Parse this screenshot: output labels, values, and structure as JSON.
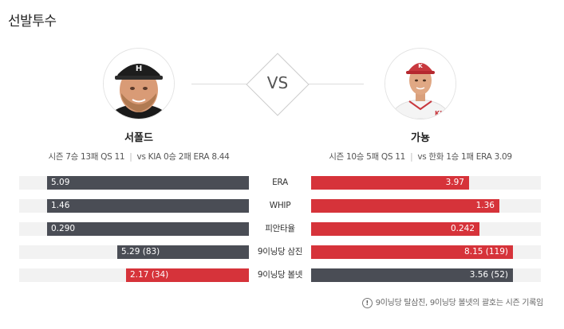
{
  "section_title": "선발투수",
  "vs_label": "VS",
  "away": {
    "name": "서폴드",
    "season_label": "시즌 7승 13패 QS 11",
    "vs_label": "vs KIA 0승 2패 ERA 8.44"
  },
  "home": {
    "name": "가뇽",
    "season_label": "시즌 10승 5패 QS 11",
    "vs_label": "vs 한화 1승 1패 ERA 3.09"
  },
  "colors": {
    "away_bar": "#4a4d55",
    "home_bar": "#d6333a",
    "track": "#f2f2f2"
  },
  "stats": [
    {
      "label": "ERA",
      "left_text": "5.09",
      "left_value": 5.09,
      "left_color": "gray",
      "right_text": "3.97",
      "right_value": 3.97,
      "right_color": "red"
    },
    {
      "label": "WHIP",
      "left_text": "1.46",
      "left_value": 1.46,
      "left_color": "gray",
      "right_text": "1.36",
      "right_value": 1.36,
      "right_color": "red"
    },
    {
      "label": "피안타율",
      "left_text": "0.290",
      "left_value": 0.29,
      "left_color": "gray",
      "right_text": "0.242",
      "right_value": 0.242,
      "right_color": "red"
    },
    {
      "label": "9이닝당 삼진",
      "left_text": "5.29 (83)",
      "left_value": 5.29,
      "left_color": "gray",
      "right_text": "8.15 (119)",
      "right_value": 8.15,
      "right_color": "red"
    },
    {
      "label": "9이닝당 볼넷",
      "left_text": "2.17 (34)",
      "left_value": 2.17,
      "left_color": "red",
      "right_text": "3.56 (52)",
      "right_value": 3.56,
      "right_color": "gray"
    }
  ],
  "footnote": "9이닝당 탈삼진, 9이닝당 볼넷의 괄호는 시즌 기록임",
  "icons": {
    "footnote": "info-icon",
    "away_photo": "player-photo-away",
    "home_photo": "player-photo-home"
  }
}
